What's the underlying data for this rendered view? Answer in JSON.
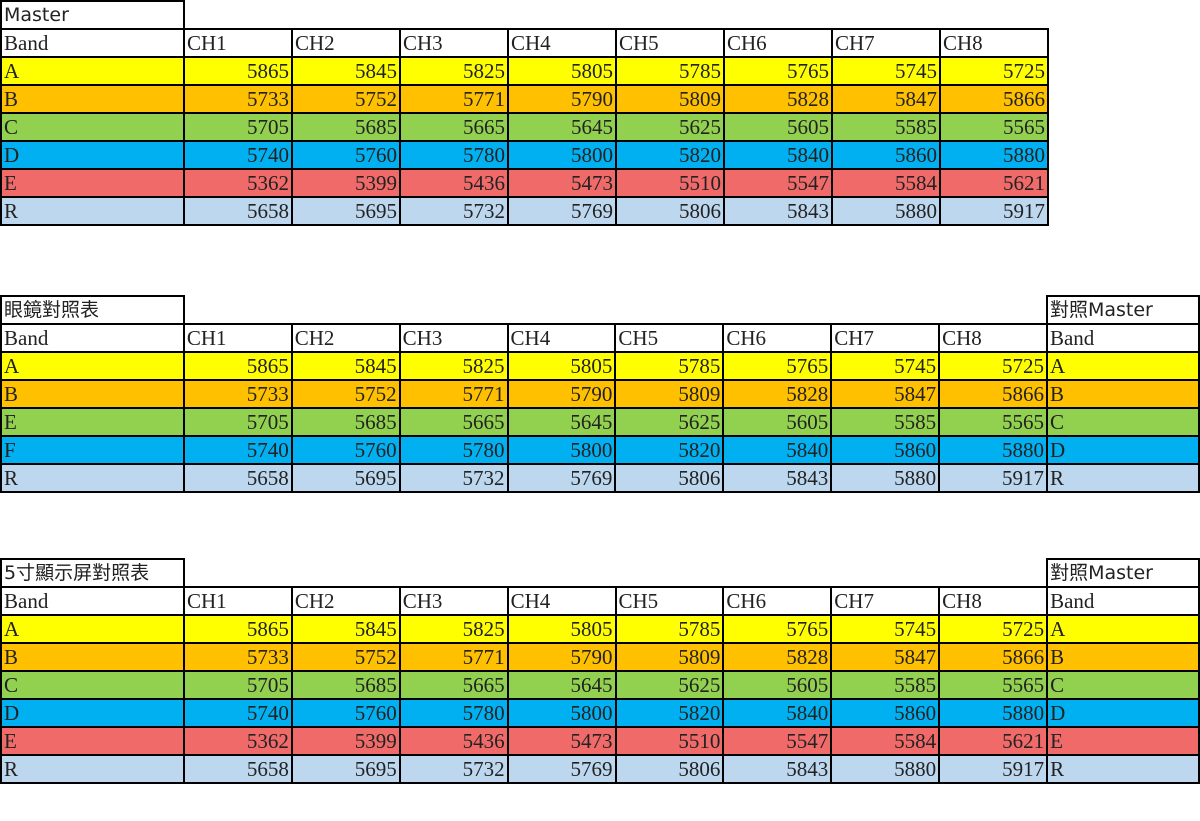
{
  "colors": {
    "A": "#ffff00",
    "B": "#ffc000",
    "C": "#92d050",
    "D": "#00b0f0",
    "E": "#f06a6a",
    "R": "#bdd7ee",
    "F": "#00b0f0"
  },
  "tables": [
    {
      "title": "Master",
      "band_header": "Band",
      "channels": [
        "CH1",
        "CH2",
        "CH3",
        "CH4",
        "CH5",
        "CH6",
        "CH7",
        "CH8"
      ],
      "rows": [
        {
          "band": "A",
          "color_key": "A",
          "values": [
            "5865",
            "5845",
            "5825",
            "5805",
            "5785",
            "5765",
            "5745",
            "5725"
          ]
        },
        {
          "band": "B",
          "color_key": "B",
          "values": [
            "5733",
            "5752",
            "5771",
            "5790",
            "5809",
            "5828",
            "5847",
            "5866"
          ]
        },
        {
          "band": "C",
          "color_key": "C",
          "values": [
            "5705",
            "5685",
            "5665",
            "5645",
            "5625",
            "5605",
            "5585",
            "5565"
          ]
        },
        {
          "band": "D",
          "color_key": "D",
          "values": [
            "5740",
            "5760",
            "5780",
            "5800",
            "5820",
            "5840",
            "5860",
            "5880"
          ]
        },
        {
          "band": "E",
          "color_key": "E",
          "values": [
            "5362",
            "5399",
            "5436",
            "5473",
            "5510",
            "5547",
            "5584",
            "5621"
          ]
        },
        {
          "band": "R",
          "color_key": "R",
          "values": [
            "5658",
            "5695",
            "5732",
            "5769",
            "5806",
            "5843",
            "5880",
            "5917"
          ]
        }
      ]
    },
    {
      "title": "眼鏡對照表",
      "band_header": "Band",
      "channels": [
        "CH1",
        "CH2",
        "CH3",
        "CH4",
        "CH5",
        "CH6",
        "CH7",
        "CH8"
      ],
      "extra_title": "對照Master",
      "extra_header": "Band",
      "rows": [
        {
          "band": "A",
          "color_key": "A",
          "values": [
            "5865",
            "5845",
            "5825",
            "5805",
            "5785",
            "5765",
            "5745",
            "5725"
          ],
          "master": "A"
        },
        {
          "band": "B",
          "color_key": "B",
          "values": [
            "5733",
            "5752",
            "5771",
            "5790",
            "5809",
            "5828",
            "5847",
            "5866"
          ],
          "master": "B"
        },
        {
          "band": "E",
          "color_key": "C",
          "values": [
            "5705",
            "5685",
            "5665",
            "5645",
            "5625",
            "5605",
            "5585",
            "5565"
          ],
          "master": "C"
        },
        {
          "band": "F",
          "color_key": "D",
          "values": [
            "5740",
            "5760",
            "5780",
            "5800",
            "5820",
            "5840",
            "5860",
            "5880"
          ],
          "master": "D"
        },
        {
          "band": "R",
          "color_key": "R",
          "values": [
            "5658",
            "5695",
            "5732",
            "5769",
            "5806",
            "5843",
            "5880",
            "5917"
          ],
          "master": "R"
        }
      ]
    },
    {
      "title": "5寸顯示屏對照表",
      "band_header": "Band",
      "channels": [
        "CH1",
        "CH2",
        "CH3",
        "CH4",
        "CH5",
        "CH6",
        "CH7",
        "CH8"
      ],
      "extra_title": "對照Master",
      "extra_header": "Band",
      "rows": [
        {
          "band": "A",
          "color_key": "A",
          "values": [
            "5865",
            "5845",
            "5825",
            "5805",
            "5785",
            "5765",
            "5745",
            "5725"
          ],
          "master": "A"
        },
        {
          "band": "B",
          "color_key": "B",
          "values": [
            "5733",
            "5752",
            "5771",
            "5790",
            "5809",
            "5828",
            "5847",
            "5866"
          ],
          "master": "B"
        },
        {
          "band": "C",
          "color_key": "C",
          "values": [
            "5705",
            "5685",
            "5665",
            "5645",
            "5625",
            "5605",
            "5585",
            "5565"
          ],
          "master": "C"
        },
        {
          "band": "D",
          "color_key": "D",
          "values": [
            "5740",
            "5760",
            "5780",
            "5800",
            "5820",
            "5840",
            "5860",
            "5880"
          ],
          "master": "D"
        },
        {
          "band": "E",
          "color_key": "E",
          "values": [
            "5362",
            "5399",
            "5436",
            "5473",
            "5510",
            "5547",
            "5584",
            "5621"
          ],
          "master": "E"
        },
        {
          "band": "R",
          "color_key": "R",
          "values": [
            "5658",
            "5695",
            "5732",
            "5769",
            "5806",
            "5843",
            "5880",
            "5917"
          ],
          "master": "R"
        }
      ]
    }
  ]
}
